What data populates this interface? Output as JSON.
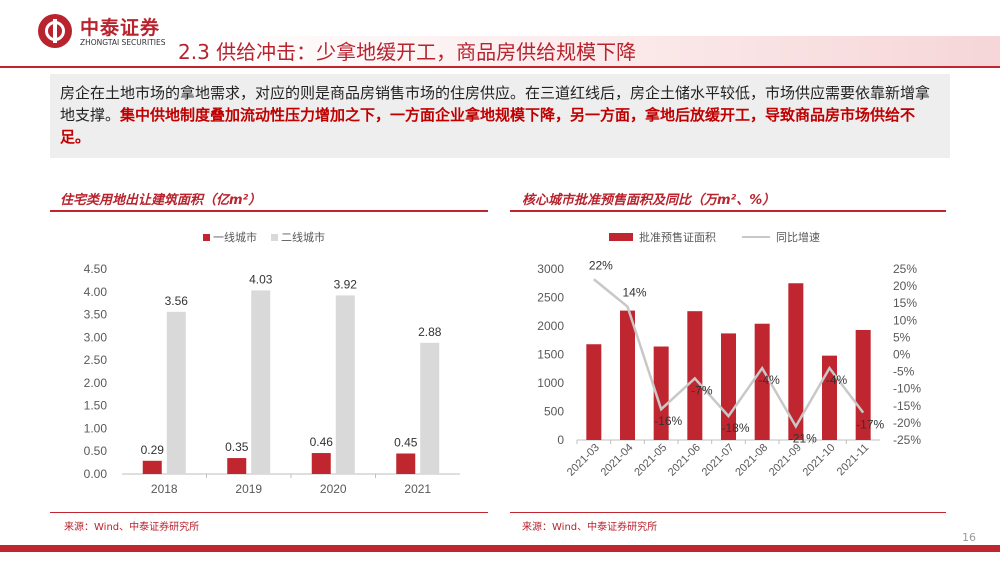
{
  "header": {
    "logo_name": "中泰证券",
    "logo_sub": "ZHONGTAI SECURITIES",
    "title": "2.3 供给冲击：少拿地缓开工，商品房供给规模下降"
  },
  "summary": {
    "plain": "房企在土地市场的拿地需求，对应的则是商品房销售市场的住房供应。在三道红线后，房企土储水平较低，市场供应需要依靠新增拿地支撑。",
    "emphasis": "集中供地制度叠加流动性压力增加之下，一方面企业拿地规模下降，另一方面，拿地后放缓开工，导致商品房市场供给不足。"
  },
  "colors": {
    "brand": "#b8232e",
    "series_a": "#c0262f",
    "series_b": "#d9d9d9",
    "line": "#c8c8c8",
    "emphasis": "#c00000"
  },
  "left_panel": {
    "source": "来源：Wind、中泰证券研究所"
  },
  "right_panel": {
    "source": "来源：Wind、中泰证券研究所"
  },
  "page": {
    "number": "16"
  },
  "chart_data": [
    {
      "type": "bar",
      "title": "住宅类用地出让建筑面积（亿m²）",
      "categories": [
        "2018",
        "2019",
        "2020",
        "2021"
      ],
      "series": [
        {
          "name": "一线城市",
          "color": "#c0262f",
          "values": [
            0.29,
            0.35,
            0.46,
            0.45
          ],
          "labels": [
            "0.29",
            "0.35",
            "0.46",
            "0.45"
          ]
        },
        {
          "name": "二线城市",
          "color": "#d9d9d9",
          "values": [
            3.56,
            4.03,
            3.92,
            2.88
          ],
          "labels": [
            "3.56",
            "4.03",
            "3.92",
            "2.88"
          ]
        }
      ],
      "ylim": [
        0,
        4.5
      ],
      "yticks": [
        "0.00",
        "0.50",
        "1.00",
        "1.50",
        "2.00",
        "2.50",
        "3.00",
        "3.50",
        "4.00",
        "4.50"
      ],
      "legend": "top",
      "grid": false
    },
    {
      "type": "bar",
      "title": "核心城市批准预售面积及同比（万m²、%）",
      "categories": [
        "2021-03",
        "2021-04",
        "2021-05",
        "2021-06",
        "2021-07",
        "2021-08",
        "2021-09",
        "2021-10",
        "2021-11"
      ],
      "bar_series": {
        "name": "批准预售证面积",
        "color": "#c0262f",
        "values": [
          1680,
          2270,
          1640,
          2260,
          1870,
          2040,
          2750,
          1480,
          1930
        ]
      },
      "line_series": {
        "name": "同比增速",
        "color": "#c8c8c8",
        "values": [
          22,
          14,
          -16,
          -7,
          -18,
          -4,
          -21,
          -4,
          -17
        ],
        "labels": [
          "22%",
          "14%",
          "-16%",
          "-7%",
          "-18%",
          "-4%",
          "-21%",
          "-4%",
          "-17%"
        ]
      },
      "ylim_left": [
        0,
        3000
      ],
      "yticks_left": [
        "0",
        "500",
        "1000",
        "1500",
        "2000",
        "2500",
        "3000"
      ],
      "ylim_right": [
        -25,
        25
      ],
      "yticks_right": [
        "-25%",
        "-20%",
        "-15%",
        "-10%",
        "-5%",
        "0%",
        "5%",
        "10%",
        "15%",
        "20%",
        "25%"
      ],
      "legend": "top",
      "grid": false
    }
  ]
}
